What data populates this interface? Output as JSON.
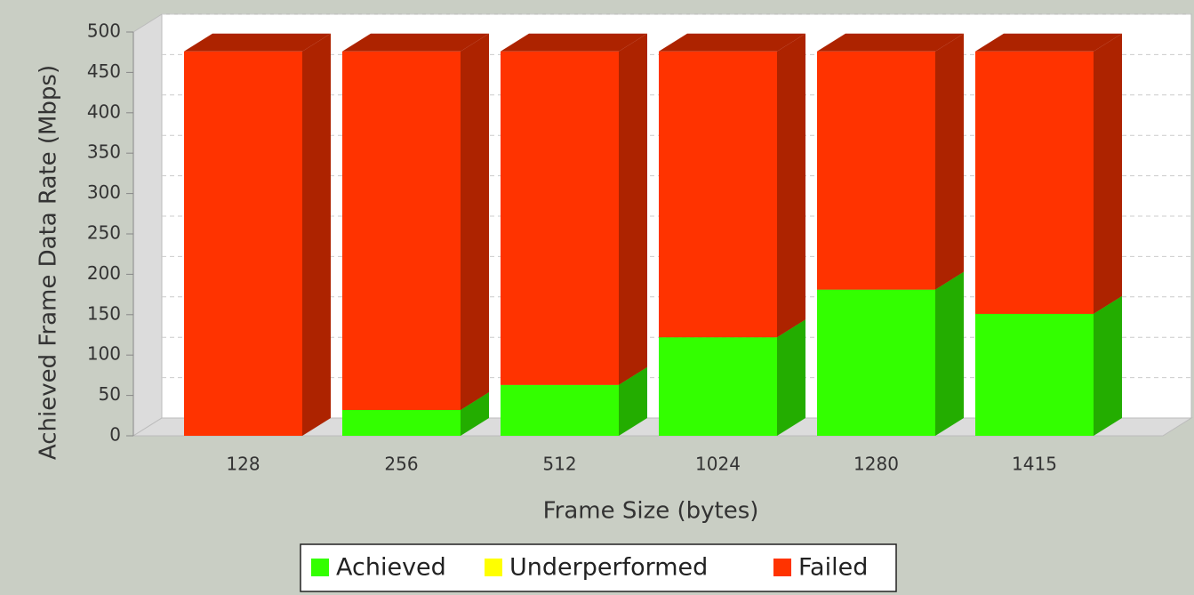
{
  "chart_data": {
    "type": "bar3d_stacked",
    "x_label": "Frame Size (bytes)",
    "y_label": "Achieved Frame Data Rate (Mbps)",
    "categories": [
      "128",
      "256",
      "512",
      "1024",
      "1280",
      "1415"
    ],
    "series": [
      {
        "name": "Achieved",
        "color": "#33ff00",
        "values": [
          0,
          32,
          63,
          122,
          181,
          151
        ]
      },
      {
        "name": "Underperformed",
        "color": "#ffff00",
        "values": [
          0,
          0,
          0,
          0,
          0,
          0
        ]
      },
      {
        "name": "Failed",
        "color": "#ff3300",
        "values": [
          476,
          444,
          413,
          354,
          295,
          325
        ]
      }
    ],
    "ylim": [
      0,
      500
    ],
    "yticks": [
      0,
      50,
      100,
      150,
      200,
      250,
      300,
      350,
      400,
      450,
      500
    ],
    "grid": true
  }
}
